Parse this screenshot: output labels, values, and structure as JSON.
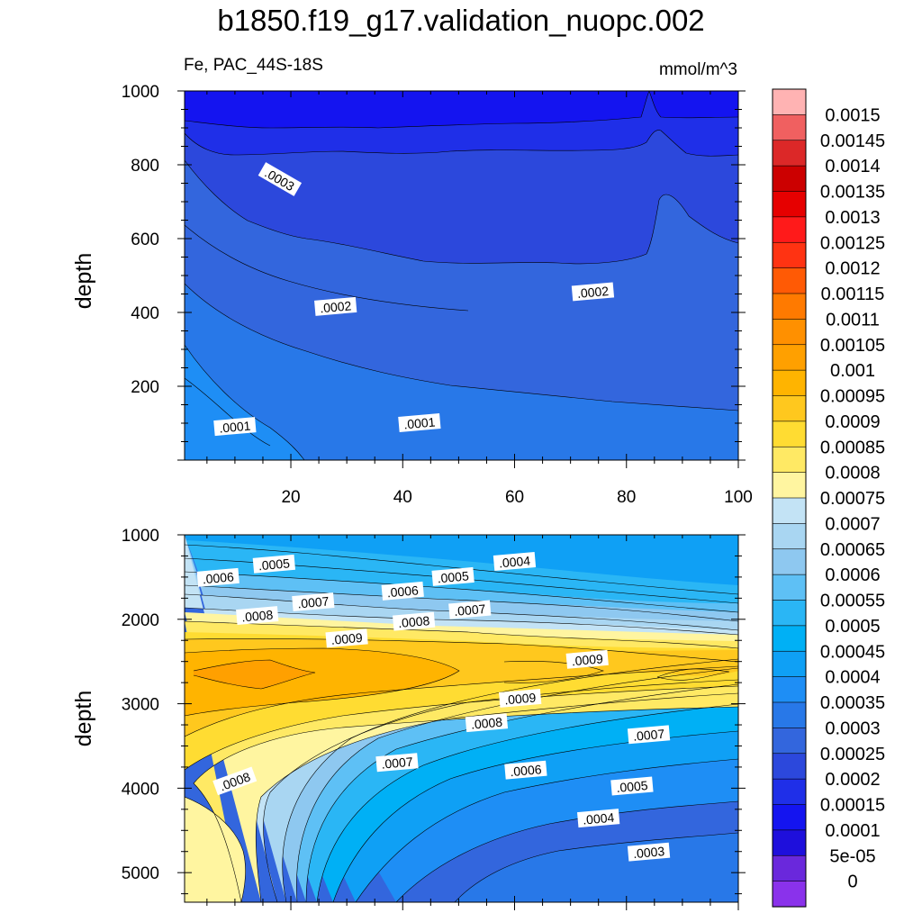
{
  "title": "b1850.f19_g17.validation_nuopc.002",
  "subtitle_left": "Fe, PAC_44S-18S",
  "subtitle_right": "mmol/m^3",
  "chart_data": [
    {
      "type": "heatmap",
      "panel": "upper",
      "ylabel": "depth",
      "xlim": [
        1,
        100
      ],
      "ylim": [
        1000,
        0
      ],
      "x_ticks": [
        20,
        40,
        60,
        80,
        100
      ],
      "y_ticks": [
        200,
        400,
        600,
        800,
        1000
      ],
      "contour_labels": [
        {
          "text": ".0001",
          "x": 10,
          "depth": 90
        },
        {
          "text": ".0001",
          "x": 43,
          "depth": 100
        },
        {
          "text": ".0002",
          "x": 28,
          "depth": 415
        },
        {
          "text": ".0002",
          "x": 74,
          "depth": 455
        },
        {
          "text": ".0003",
          "x": 18,
          "depth": 760
        }
      ]
    },
    {
      "type": "heatmap",
      "panel": "lower",
      "ylabel": "depth",
      "xlim": [
        1,
        100
      ],
      "ylim": [
        1000,
        5350
      ],
      "y_ticks": [
        1000,
        2000,
        3000,
        4000,
        5000
      ],
      "contour_labels": [
        {
          "text": ".0005",
          "x": 17,
          "depth": 1350
        },
        {
          "text": ".0004",
          "x": 60,
          "depth": 1320
        },
        {
          "text": ".0006",
          "x": 7,
          "depth": 1510
        },
        {
          "text": ".0005",
          "x": 49,
          "depth": 1500
        },
        {
          "text": ".0006",
          "x": 40,
          "depth": 1670
        },
        {
          "text": ".0007",
          "x": 24,
          "depth": 1800
        },
        {
          "text": ".0007",
          "x": 52,
          "depth": 1890
        },
        {
          "text": ".0008",
          "x": 14,
          "depth": 1960
        },
        {
          "text": ".0008",
          "x": 42,
          "depth": 2030
        },
        {
          "text": ".0009",
          "x": 30,
          "depth": 2230
        },
        {
          "text": ".0009",
          "x": 73,
          "depth": 2480
        },
        {
          "text": ".0009",
          "x": 61,
          "depth": 2940
        },
        {
          "text": ".0008",
          "x": 55,
          "depth": 3230
        },
        {
          "text": ".0007",
          "x": 84,
          "depth": 3370
        },
        {
          "text": ".0007",
          "x": 39,
          "depth": 3700
        },
        {
          "text": ".0006",
          "x": 62,
          "depth": 3790
        },
        {
          "text": ".0008",
          "x": 10,
          "depth": 3920
        },
        {
          "text": ".0005",
          "x": 81,
          "depth": 3980
        },
        {
          "text": ".0004",
          "x": 75,
          "depth": 4360
        },
        {
          "text": ".0003",
          "x": 84,
          "depth": 4760
        }
      ]
    }
  ],
  "colorbar": {
    "labels": [
      "0.0015",
      "0.00145",
      "0.0014",
      "0.00135",
      "0.0013",
      "0.00125",
      "0.0012",
      "0.00115",
      "0.0011",
      "0.00105",
      "0.001",
      "0.00095",
      "0.0009",
      "0.00085",
      "0.0008",
      "0.00075",
      "0.0007",
      "0.00065",
      "0.0006",
      "0.00055",
      "0.0005",
      "0.00045",
      "0.0004",
      "0.00035",
      "0.0003",
      "0.00025",
      "0.0002",
      "0.00015",
      "0.0001",
      "5e-05",
      "0"
    ],
    "colors": [
      "#ffb3b3",
      "#f06060",
      "#dc2828",
      "#cc0000",
      "#e60000",
      "#ff1a1a",
      "#ff3312",
      "#ff5a05",
      "#ff7a00",
      "#ff9000",
      "#ffa000",
      "#ffb400",
      "#ffc81e",
      "#ffdc32",
      "#ffe964",
      "#fff5a0",
      "#c3e3f5",
      "#a9d6f2",
      "#8ec8f0",
      "#5ec0f5",
      "#2ab6f5",
      "#00b0f5",
      "#0fa0f5",
      "#1e8ef5",
      "#2878e8",
      "#3366dd",
      "#2c48dc",
      "#1f2fe8",
      "#1414f0",
      "#1e0fdc",
      "#6a28dc",
      "#8a32eb"
    ]
  }
}
